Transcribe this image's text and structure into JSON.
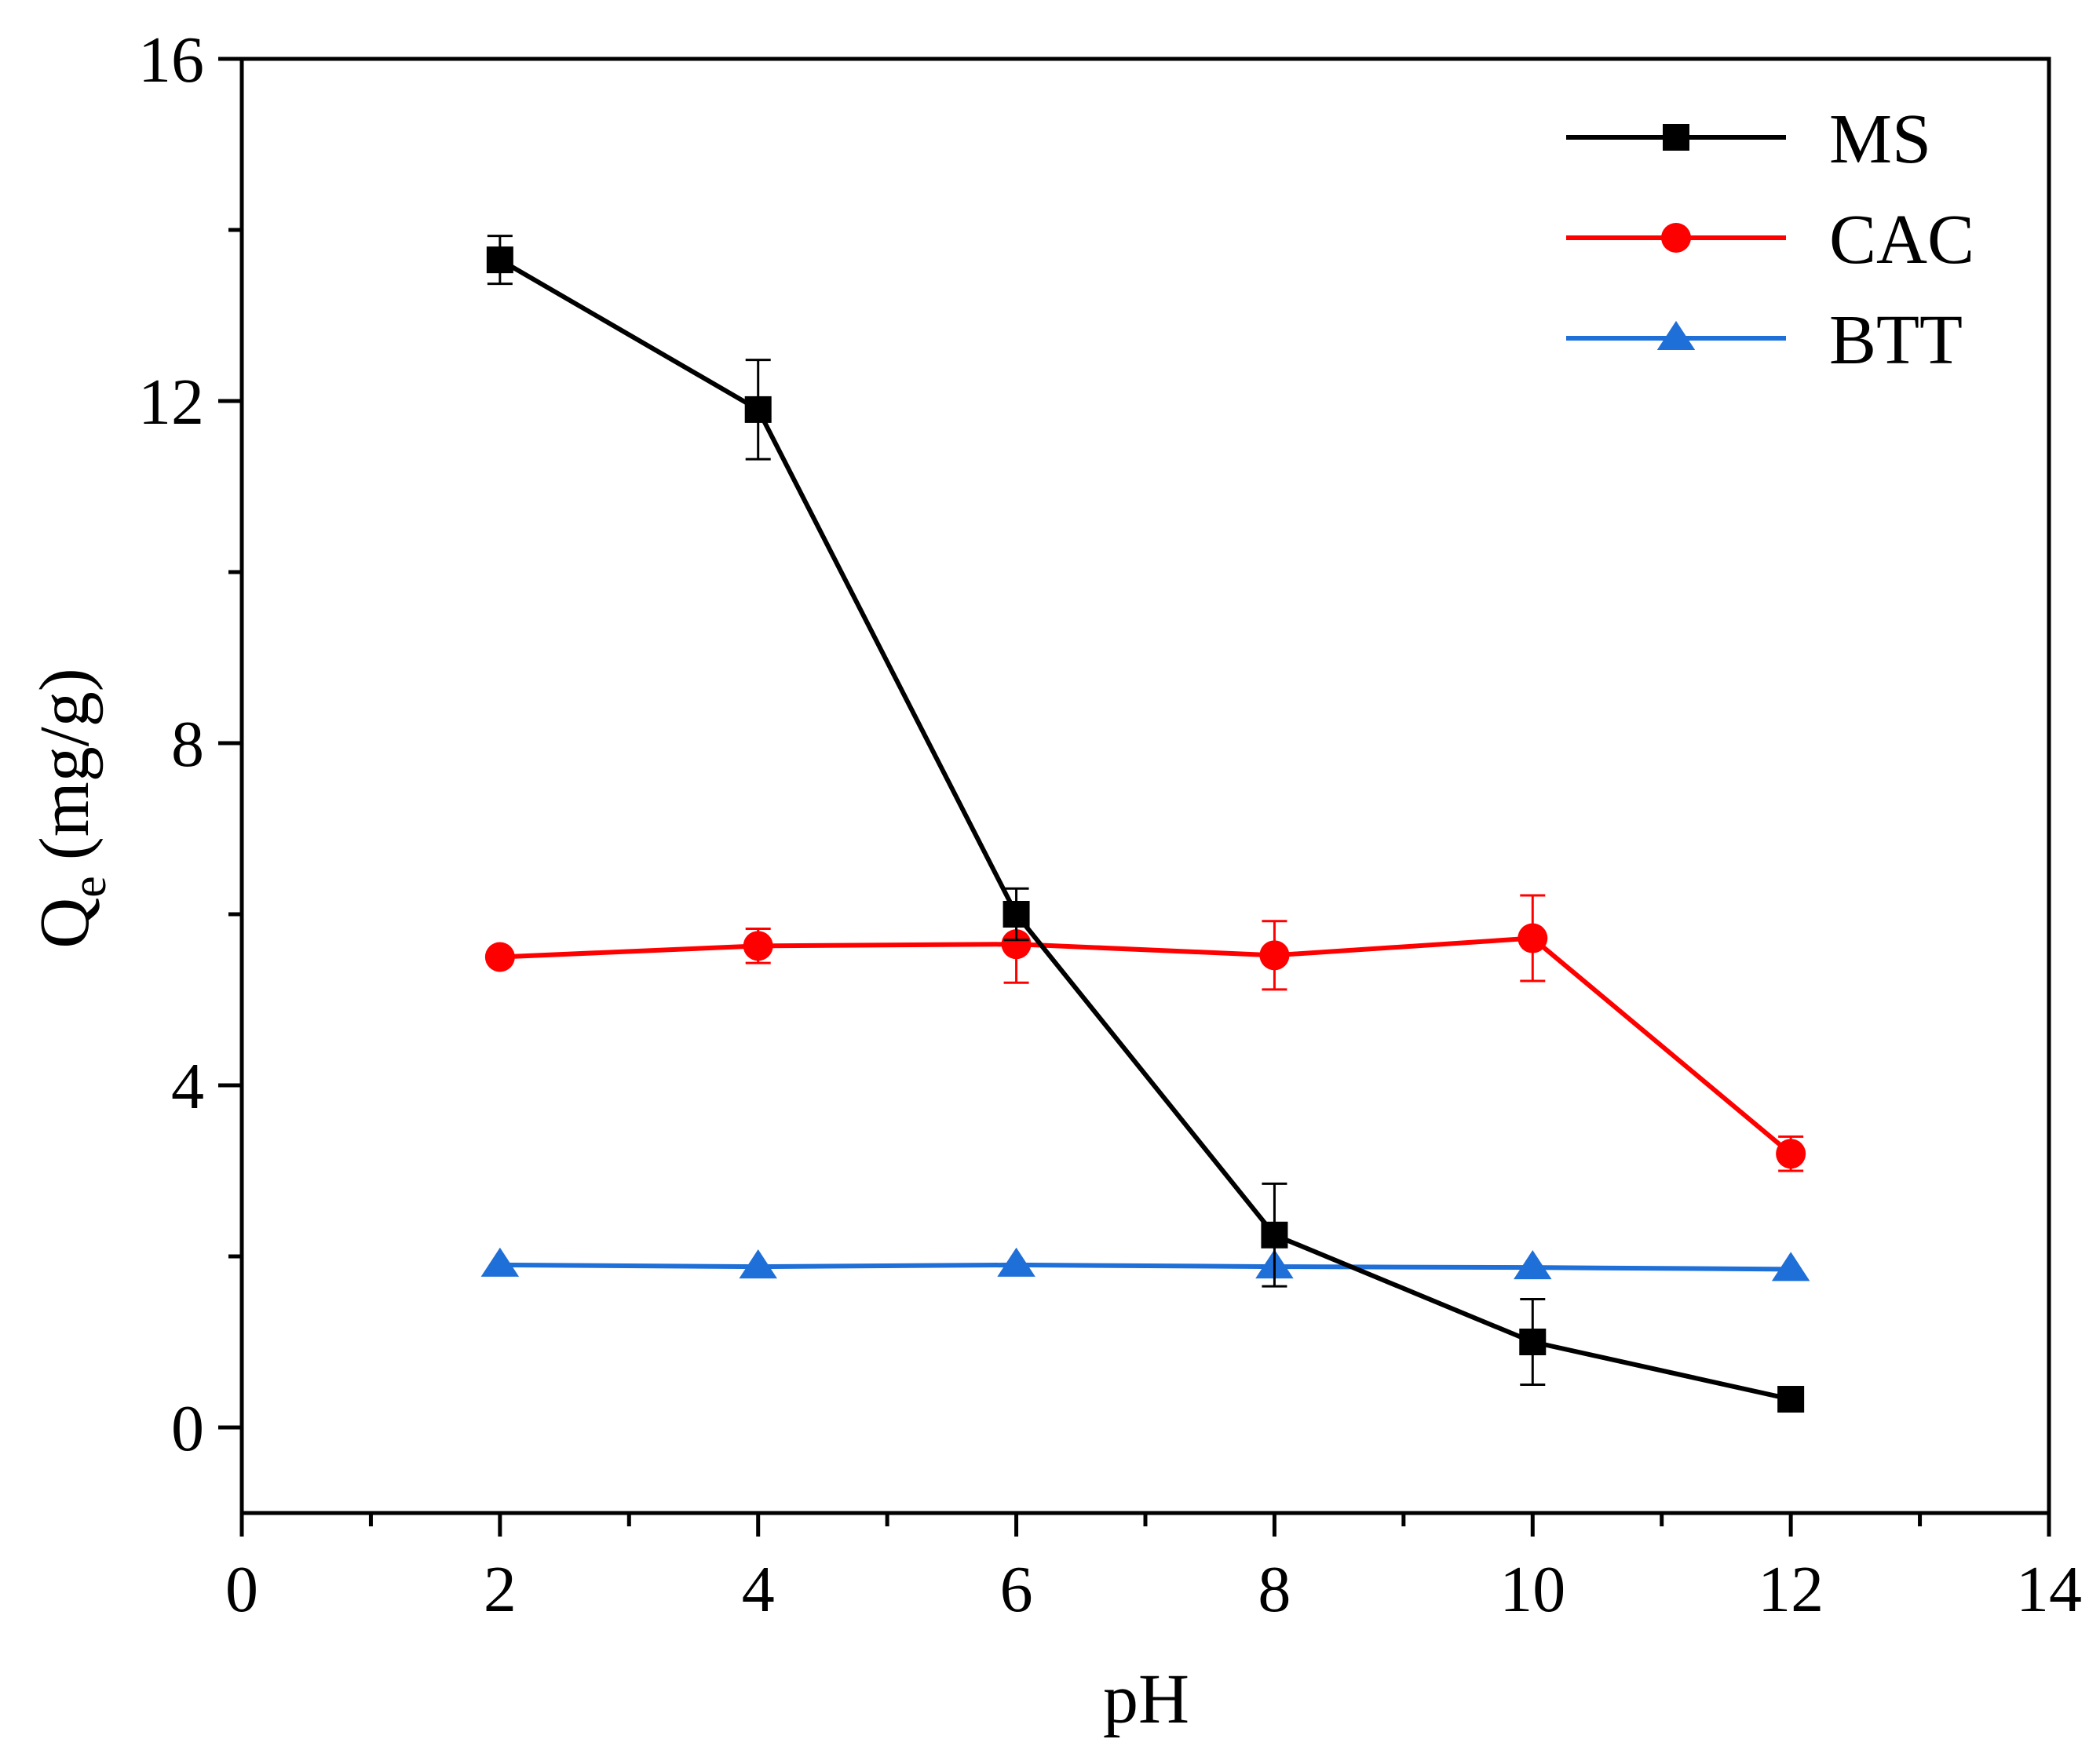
{
  "chart_data": {
    "type": "line",
    "title": "",
    "xlabel": "pH",
    "ylabel": {
      "main": "Q",
      "sub": "e",
      "units": "(mg/g)"
    },
    "xlim": [
      0,
      14
    ],
    "ylim": [
      -1,
      16
    ],
    "x_ticks": [
      0,
      2,
      4,
      6,
      8,
      10,
      12,
      14
    ],
    "x_tick_labels": [
      "0",
      "2",
      "4",
      "6",
      "8",
      "10",
      "12",
      "14"
    ],
    "x_minor_ticks": [
      1,
      3,
      5,
      7,
      9,
      11,
      13
    ],
    "y_ticks": [
      0,
      4,
      8,
      12,
      16
    ],
    "y_tick_labels": [
      "0",
      "4",
      "8",
      "12",
      "16"
    ],
    "y_minor_ticks": [
      2,
      6,
      10,
      14
    ],
    "grid": false,
    "legend_position": "top-right",
    "series": [
      {
        "name": "MS",
        "color": "#000000",
        "marker": "square",
        "x": [
          2,
          4,
          6,
          8,
          10,
          12
        ],
        "y": [
          13.65,
          11.9,
          6.0,
          2.25,
          1.0,
          0.33
        ],
        "err": [
          0.28,
          0.58,
          0.3,
          0.6,
          0.5,
          0.0
        ]
      },
      {
        "name": "CAC",
        "color": "#ff0000",
        "marker": "circle",
        "x": [
          2,
          4,
          6,
          8,
          10,
          12
        ],
        "y": [
          5.5,
          5.63,
          5.65,
          5.52,
          5.72,
          3.2
        ],
        "err": [
          0.0,
          0.2,
          0.45,
          0.4,
          0.5,
          0.2
        ]
      },
      {
        "name": "BTT",
        "color": "#1f6fd8",
        "marker": "triangle",
        "x": [
          2,
          4,
          6,
          8,
          10,
          12
        ],
        "y": [
          1.9,
          1.88,
          1.9,
          1.88,
          1.87,
          1.85
        ],
        "err": [
          0,
          0,
          0,
          0,
          0,
          0
        ]
      }
    ]
  }
}
